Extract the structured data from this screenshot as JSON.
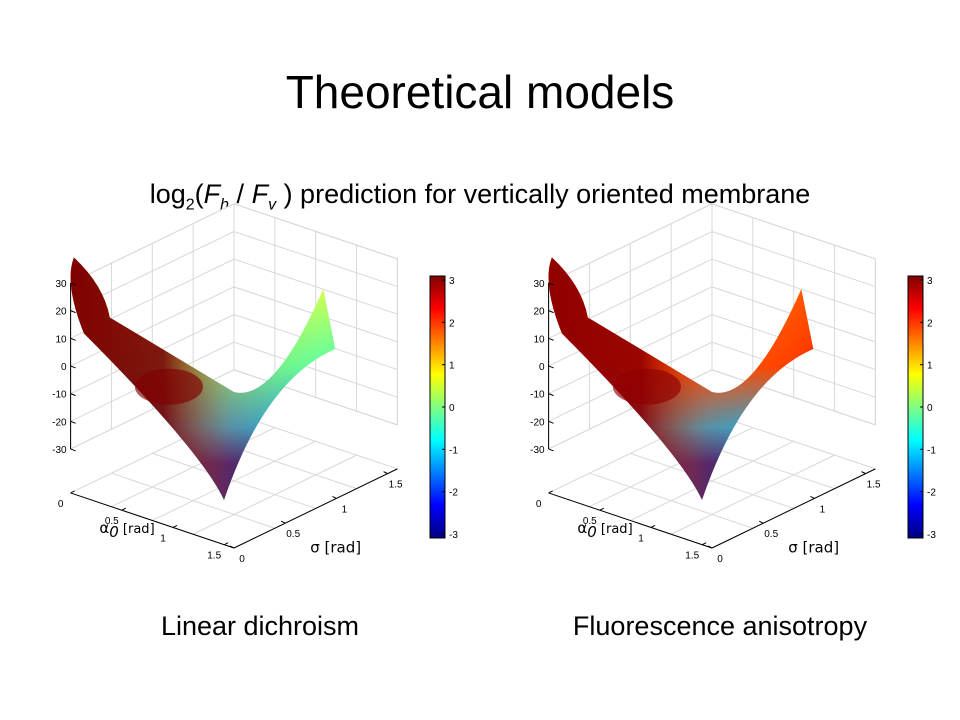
{
  "slide": {
    "title": "Theoretical models",
    "subtitle": {
      "prefix": "log",
      "base": "2",
      "open": "(",
      "num_var": "F",
      "num_sub": "h",
      "slash": " / ",
      "den_var": "F",
      "den_sub": "v",
      "close": " ) prediction for vertically oriented membrane"
    }
  },
  "colors": {
    "colormap": "jet",
    "grid": "#d8d8d8",
    "axes": "#000000"
  },
  "chart_data": [
    {
      "type": "surface",
      "caption": "Linear dichroism",
      "xlabel_sym": "α",
      "xlabel_sub": "0",
      "xlabel_unit": " [rad]",
      "ylabel": "σ [rad]",
      "xticks": [
        "0",
        "0.5",
        "1",
        "1.5"
      ],
      "yticks": [
        "0",
        "0.5",
        "1",
        "1.5"
      ],
      "zticks": [
        "30",
        "20",
        "10",
        "0",
        "-10",
        "-20",
        "-30"
      ],
      "zlim": [
        -30,
        30
      ],
      "colorbar": {
        "ticks": [
          "3",
          "2",
          "1",
          "0",
          "-1",
          "-2",
          "-3"
        ],
        "clim": [
          -3,
          3
        ]
      },
      "corner_colors": {
        "origin": "#7f0000",
        "high_alpha": "#0000a0",
        "high_sigma": "#55ffaa",
        "far": "#ffff30"
      }
    },
    {
      "type": "surface",
      "caption": "Fluorescence anisotropy",
      "xlabel_sym": "α",
      "xlabel_sub": "0",
      "xlabel_unit": " [rad]",
      "ylabel": "σ [rad]",
      "xticks": [
        "0",
        "0.5",
        "1",
        "1.5"
      ],
      "yticks": [
        "0",
        "0.5",
        "1",
        "1.5"
      ],
      "zticks": [
        "30",
        "20",
        "10",
        "0",
        "-10",
        "-20",
        "-30"
      ],
      "zlim": [
        -30,
        30
      ],
      "colorbar": {
        "ticks": [
          "3",
          "2",
          "1",
          "0",
          "-1",
          "-2",
          "-3"
        ],
        "clim": [
          -3,
          3
        ]
      },
      "corner_colors": {
        "origin": "#900000",
        "high_alpha": "#0000a0",
        "high_sigma": "#ff3000",
        "far": "#ff6000"
      }
    }
  ]
}
